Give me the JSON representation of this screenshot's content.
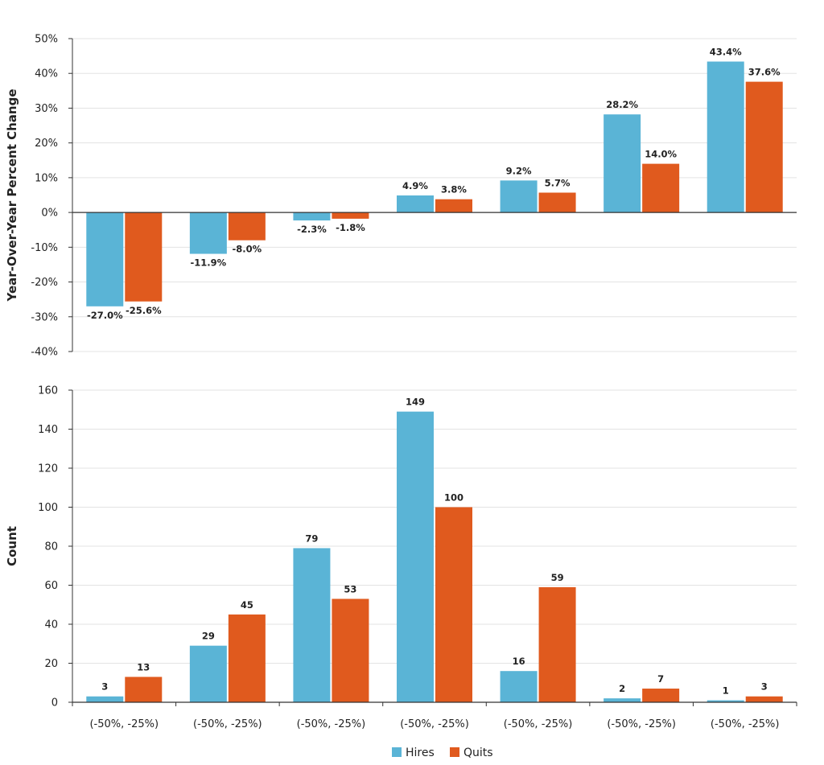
{
  "colors": {
    "hires": "#5ab4d6",
    "quits": "#e05a1e",
    "grid": "#e3e3e3",
    "axis": "#333333"
  },
  "legend": {
    "items": [
      {
        "name": "Hires",
        "color": "#5ab4d6"
      },
      {
        "name": "Quits",
        "color": "#e05a1e"
      }
    ]
  },
  "chart_data": [
    {
      "type": "bar",
      "ylabel": "Year-Over-Year Percent Change",
      "ylim": [
        -40,
        50
      ],
      "yticks": [
        "-40%",
        "-30%",
        "-20%",
        "-10%",
        "0%",
        "10%",
        "20%",
        "30%",
        "40%",
        "50%"
      ],
      "categories": [
        "(-50%, -25%)",
        "(-50%, -25%)",
        "(-50%, -25%)",
        "(-50%, -25%)",
        "(-50%, -25%)",
        "(-50%, -25%)",
        "(-50%, -25%)"
      ],
      "series": [
        {
          "name": "Hires",
          "values": [
            -27.0,
            -11.9,
            -2.3,
            4.9,
            9.2,
            28.2,
            43.4
          ],
          "labels": [
            "-27.0%",
            "-11.9%",
            "-2.3%",
            "4.9%",
            "9.2%",
            "28.2%",
            "43.4%"
          ]
        },
        {
          "name": "Quits",
          "values": [
            -25.6,
            -8.0,
            -1.8,
            3.8,
            5.7,
            14.0,
            37.6
          ],
          "labels": [
            "-25.6%",
            "-8.0%",
            "-1.8%",
            "3.8%",
            "5.7%",
            "14.0%",
            "37.6%"
          ]
        }
      ],
      "grid": true
    },
    {
      "type": "bar",
      "ylabel": "Count",
      "ylim": [
        0,
        160
      ],
      "yticks": [
        "0",
        "20",
        "40",
        "60",
        "80",
        "100",
        "120",
        "140",
        "160"
      ],
      "categories": [
        "(-50%, -25%)",
        "(-50%, -25%)",
        "(-50%, -25%)",
        "(-50%, -25%)",
        "(-50%, -25%)",
        "(-50%, -25%)",
        "(-50%, -25%)"
      ],
      "series": [
        {
          "name": "Hires",
          "values": [
            3,
            29,
            79,
            149,
            16,
            2,
            1
          ],
          "labels": [
            "3",
            "29",
            "79",
            "149",
            "16",
            "2",
            "1"
          ]
        },
        {
          "name": "Quits",
          "values": [
            13,
            45,
            53,
            100,
            59,
            7,
            3
          ],
          "labels": [
            "13",
            "45",
            "53",
            "100",
            "59",
            "7",
            "3"
          ]
        }
      ],
      "grid": true,
      "xticks_shown": true
    }
  ]
}
